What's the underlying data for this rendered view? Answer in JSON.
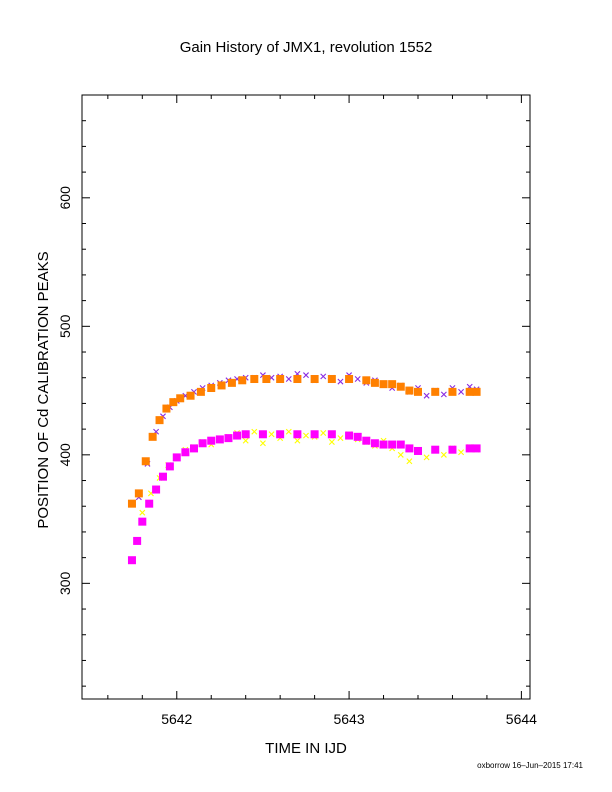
{
  "chart_data": {
    "type": "scatter",
    "title": "Gain History of JMX1, revolution 1552",
    "xlabel": "TIME IN IJD",
    "ylabel": "POSITION OF Cd CALIBRATION PEAKS",
    "xlim": [
      5641.45,
      5644.05
    ],
    "ylim": [
      210,
      680
    ],
    "x_ticks": [
      "5642",
      "5643",
      "5644"
    ],
    "y_ticks": [
      "300",
      "400",
      "500",
      "600"
    ],
    "grid": false,
    "legend": "none",
    "series": [
      {
        "marker": "x",
        "color": "#8a2be2",
        "x": [
          5641.78,
          5641.83,
          5641.88,
          5641.92,
          5641.96,
          5642.0,
          5642.05,
          5642.1,
          5642.15,
          5642.2,
          5642.25,
          5642.3,
          5642.35,
          5642.4,
          5642.45,
          5642.5,
          5642.55,
          5642.6,
          5642.65,
          5642.7,
          5642.75,
          5642.8,
          5642.85,
          5642.9,
          5642.95,
          5643.0,
          5643.05,
          5643.1,
          5643.15,
          5643.2,
          5643.25,
          5643.3,
          5643.35,
          5643.4,
          5643.45,
          5643.5,
          5643.55,
          5643.6,
          5643.65,
          5643.7,
          5643.74
        ],
        "y": [
          367,
          393,
          418,
          430,
          437,
          442,
          446,
          449,
          452,
          454,
          456,
          458,
          459,
          460,
          460,
          462,
          460,
          461,
          459,
          463,
          462,
          458,
          461,
          460,
          457,
          462,
          459,
          456,
          458,
          455,
          452,
          454,
          449,
          452,
          446,
          450,
          447,
          452,
          449,
          453,
          451
        ]
      },
      {
        "marker": "x",
        "color": "#ffff00",
        "x": [
          5641.8,
          5641.85,
          5641.9,
          5641.95,
          5642.0,
          5642.05,
          5642.1,
          5642.15,
          5642.2,
          5642.25,
          5642.3,
          5642.35,
          5642.4,
          5642.45,
          5642.5,
          5642.55,
          5642.6,
          5642.65,
          5642.7,
          5642.75,
          5642.8,
          5642.85,
          5642.9,
          5642.95,
          5643.0,
          5643.05,
          5643.1,
          5643.15,
          5643.2,
          5643.25,
          5643.3,
          5643.35,
          5643.4,
          5643.45,
          5643.5,
          5643.55,
          5643.6,
          5643.65,
          5643.7,
          5643.74
        ],
        "y": [
          355,
          370,
          382,
          392,
          398,
          404,
          406,
          410,
          408,
          412,
          414,
          417,
          411,
          418,
          409,
          416,
          413,
          418,
          411,
          415,
          414,
          417,
          410,
          413,
          416,
          412,
          410,
          407,
          411,
          405,
          400,
          395,
          403,
          398,
          404,
          400,
          405,
          402,
          406,
          404
        ]
      },
      {
        "marker": "square",
        "color": "#ff8000",
        "x": [
          5641.74,
          5641.78,
          5641.82,
          5641.86,
          5641.9,
          5641.94,
          5641.98,
          5642.02,
          5642.08,
          5642.14,
          5642.2,
          5642.26,
          5642.32,
          5642.38,
          5642.45,
          5642.52,
          5642.6,
          5642.7,
          5642.8,
          5642.9,
          5643.0,
          5643.1,
          5643.15,
          5643.2,
          5643.25,
          5643.3,
          5643.35,
          5643.4,
          5643.5,
          5643.6,
          5643.7,
          5643.74
        ],
        "y": [
          362,
          370,
          395,
          414,
          427,
          436,
          441,
          444,
          446,
          449,
          452,
          454,
          456,
          458,
          459,
          459,
          459,
          459,
          459,
          459,
          459,
          458,
          456,
          455,
          455,
          453,
          450,
          449,
          449,
          449,
          449,
          449
        ]
      },
      {
        "marker": "square",
        "color": "#ff00ff",
        "x": [
          5641.74,
          5641.77,
          5641.8,
          5641.84,
          5641.88,
          5641.92,
          5641.96,
          5642.0,
          5642.05,
          5642.1,
          5642.15,
          5642.2,
          5642.25,
          5642.3,
          5642.35,
          5642.4,
          5642.5,
          5642.6,
          5642.7,
          5642.8,
          5642.9,
          5643.0,
          5643.05,
          5643.1,
          5643.15,
          5643.2,
          5643.25,
          5643.3,
          5643.35,
          5643.4,
          5643.5,
          5643.6,
          5643.7,
          5643.74
        ],
        "y": [
          318,
          333,
          348,
          362,
          373,
          383,
          391,
          398,
          402,
          405,
          409,
          411,
          412,
          413,
          415,
          416,
          416,
          416,
          416,
          416,
          416,
          415,
          414,
          411,
          409,
          408,
          408,
          408,
          405,
          403,
          404,
          404,
          405,
          405
        ]
      }
    ]
  },
  "footer": {
    "credit": "oxborrow 16–Jun–2015 17:41"
  }
}
